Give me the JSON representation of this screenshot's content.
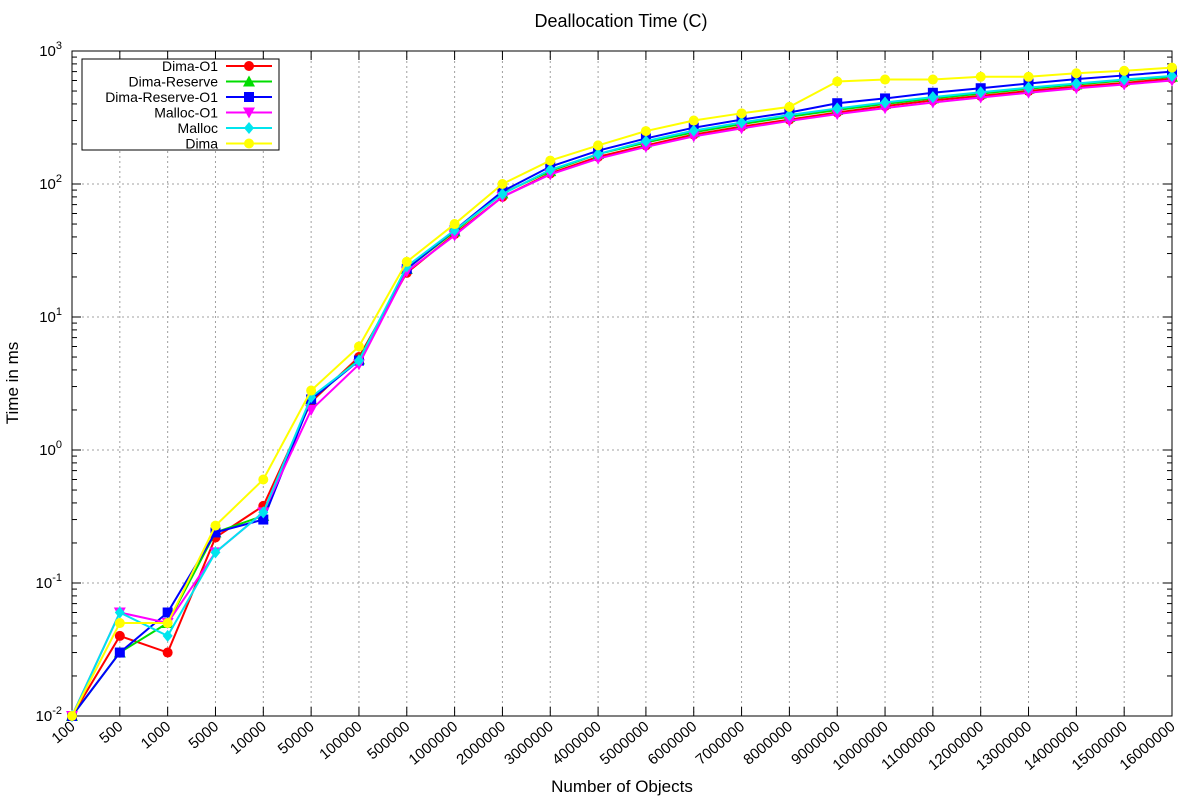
{
  "chart_data": {
    "type": "line",
    "title": "Deallocation Time (C)",
    "xlabel": "Number of Objects",
    "ylabel": "Time in ms",
    "yscale": "log",
    "ylim": [
      0.01,
      1000
    ],
    "yticks": [
      {
        "base": "10",
        "exp": "-2"
      },
      {
        "base": "10",
        "exp": "-1"
      },
      {
        "base": "10",
        "exp": "0"
      },
      {
        "base": "10",
        "exp": "1"
      },
      {
        "base": "10",
        "exp": "2"
      },
      {
        "base": "10",
        "exp": "3"
      }
    ],
    "grid": true,
    "legend_position": "top-left",
    "categories": [
      "100",
      "500",
      "1000",
      "5000",
      "10000",
      "50000",
      "100000",
      "500000",
      "1000000",
      "2000000",
      "3000000",
      "4000000",
      "5000000",
      "6000000",
      "7000000",
      "8000000",
      "9000000",
      "10000000",
      "11000000",
      "12000000",
      "13000000",
      "14000000",
      "15000000",
      "16000000"
    ],
    "series": [
      {
        "name": "Dima-O1",
        "color": "#ff0000",
        "marker": "circle",
        "values": [
          0.01,
          0.04,
          0.03,
          0.22,
          0.38,
          2.3,
          5.0,
          21.5,
          42,
          80,
          120,
          160,
          195,
          235,
          270,
          305,
          345,
          385,
          425,
          460,
          500,
          540,
          575,
          620
        ]
      },
      {
        "name": "Dima-Reserve",
        "color": "#00dd00",
        "marker": "triangle-up",
        "values": [
          0.01,
          0.03,
          0.05,
          0.24,
          0.32,
          2.4,
          4.8,
          23,
          44,
          85,
          125,
          168,
          205,
          245,
          282,
          320,
          360,
          400,
          440,
          478,
          520,
          560,
          600,
          640
        ]
      },
      {
        "name": "Dima-Reserve-O1",
        "color": "#0000ff",
        "marker": "square",
        "values": [
          0.01,
          0.03,
          0.06,
          0.24,
          0.3,
          2.4,
          4.7,
          23,
          45,
          88,
          135,
          178,
          220,
          265,
          305,
          345,
          405,
          440,
          485,
          525,
          570,
          615,
          655,
          700
        ]
      },
      {
        "name": "Malloc-O1",
        "color": "#ff00ff",
        "marker": "triangle-down",
        "values": [
          0.01,
          0.06,
          0.05,
          0.17,
          0.34,
          2.0,
          4.4,
          22,
          41,
          80,
          118,
          155,
          190,
          228,
          262,
          298,
          335,
          372,
          410,
          447,
          485,
          525,
          560,
          600
        ]
      },
      {
        "name": "Malloc",
        "color": "#00e5ee",
        "marker": "diamond",
        "values": [
          0.01,
          0.06,
          0.04,
          0.17,
          0.34,
          2.5,
          4.7,
          24,
          45,
          84,
          128,
          168,
          210,
          252,
          290,
          330,
          370,
          410,
          450,
          490,
          530,
          570,
          610,
          650
        ]
      },
      {
        "name": "Dima",
        "color": "#ffff00",
        "marker": "circle",
        "values": [
          0.01,
          0.05,
          0.05,
          0.27,
          0.6,
          2.8,
          6.0,
          26,
          50,
          100,
          150,
          195,
          250,
          300,
          340,
          380,
          590,
          610,
          610,
          640,
          640,
          680,
          710,
          750
        ]
      }
    ]
  }
}
